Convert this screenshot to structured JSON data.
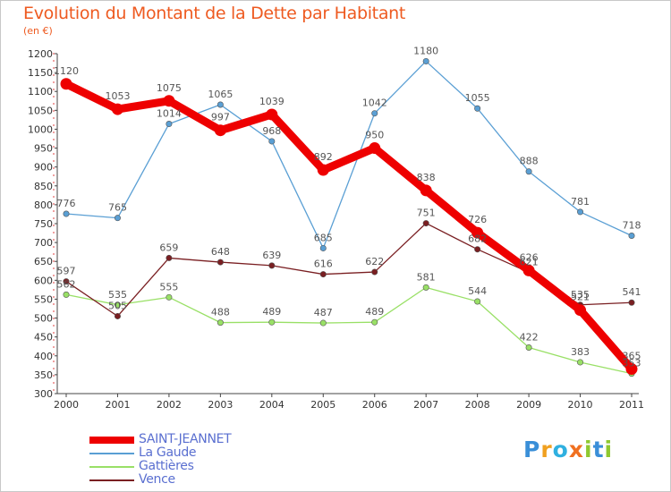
{
  "title": "Evolution du Montant de la Dette par Habitant",
  "subtitle": "(en €)",
  "logo_text": "Proxiti",
  "chart_data": {
    "type": "line",
    "x": [
      "2000",
      "2001",
      "2002",
      "2003",
      "2004",
      "2005",
      "2006",
      "2007",
      "2008",
      "2009",
      "2010",
      "2011"
    ],
    "ylim": [
      300,
      1200
    ],
    "yticks": [
      300,
      350,
      400,
      450,
      500,
      550,
      600,
      650,
      700,
      750,
      800,
      850,
      900,
      950,
      1000,
      1050,
      1100,
      1150,
      1200
    ],
    "grid": false,
    "legend_position": "bottom-left",
    "series": [
      {
        "name": "SAINT-JEANNET",
        "color": "#ee0000",
        "values": [
          1120,
          1053,
          1075,
          997,
          1039,
          892,
          950,
          838,
          726,
          626,
          521,
          365
        ]
      },
      {
        "name": "La Gaude",
        "color": "#5a9fd4",
        "values": [
          776,
          765,
          1014,
          1065,
          968,
          685,
          1042,
          1180,
          1055,
          888,
          781,
          718
        ]
      },
      {
        "name": "Gattières",
        "color": "#99e066",
        "values": [
          562,
          535,
          555,
          488,
          489,
          487,
          489,
          581,
          544,
          422,
          383,
          353
        ]
      },
      {
        "name": "Vence",
        "color": "#7a1f22",
        "values": [
          597,
          505,
          659,
          648,
          639,
          616,
          622,
          751,
          682,
          621,
          535,
          541
        ]
      }
    ]
  }
}
